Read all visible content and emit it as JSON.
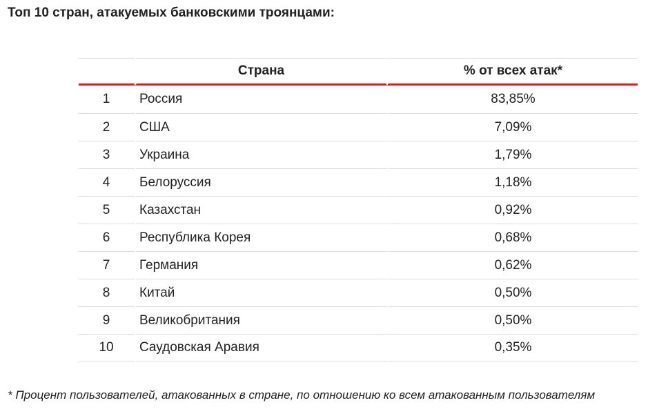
{
  "title": "Топ 10 стран, атакуемых банковскими троянцами:",
  "table": {
    "headers": {
      "number": "",
      "country": "Страна",
      "percent": "% от всех атак*"
    },
    "rows": [
      {
        "rank": "1",
        "country": "Россия",
        "percent": "83,85%"
      },
      {
        "rank": "2",
        "country": "США",
        "percent": "7,09%"
      },
      {
        "rank": "3",
        "country": "Украина",
        "percent": "1,79%"
      },
      {
        "rank": "4",
        "country": "Белоруссия",
        "percent": "1,18%"
      },
      {
        "rank": "5",
        "country": "Казахстан",
        "percent": "0,92%"
      },
      {
        "rank": "6",
        "country": "Республика Корея",
        "percent": "0,68%"
      },
      {
        "rank": "7",
        "country": "Германия",
        "percent": "0,62%"
      },
      {
        "rank": "8",
        "country": "Китай",
        "percent": "0,50%"
      },
      {
        "rank": "9",
        "country": "Великобритания",
        "percent": "0,50%"
      },
      {
        "rank": "10",
        "country": "Саудовская Аравия",
        "percent": "0,35%"
      }
    ]
  },
  "footnote": "* Процент пользователей, атакованных в стране, по отношению ко всем атакованным пользователям",
  "colors": {
    "header_rule": "#e0161b",
    "row_rule": "#d6dee2",
    "text": "#222222"
  }
}
